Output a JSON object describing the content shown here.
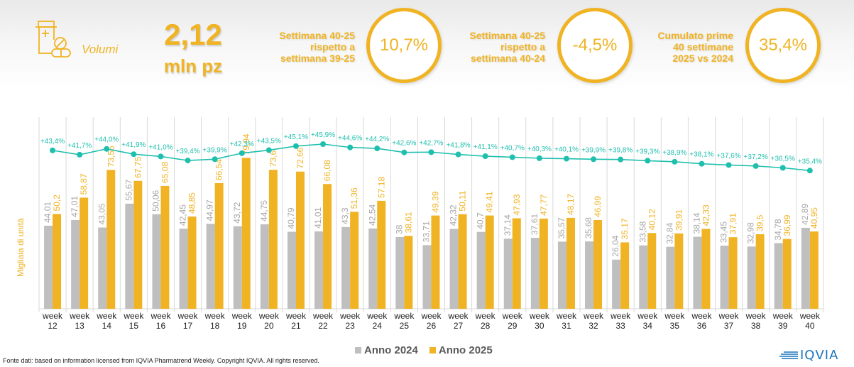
{
  "header": {
    "section_icon": "pill-bottle-icon",
    "section_label": "Volumi",
    "total_value": "2,12",
    "total_unit": "mln pz",
    "kpis": [
      {
        "label_lines": [
          "Settimana 40-25",
          "rispetto a",
          "settimana 39-25"
        ],
        "value": "10,7%"
      },
      {
        "label_lines": [
          "Settimana 40-25",
          "rispetto a",
          "settimana 40-24"
        ],
        "value": "-4,5%"
      },
      {
        "label_lines": [
          "Cumulato prime",
          "40 settimane",
          "2025 vs 2024"
        ],
        "value": "35,4%"
      }
    ]
  },
  "colors": {
    "accent": "#f0b323",
    "series_2024": "#bfbfbf",
    "series_2025": "#f0b323",
    "line": "#1fbfae",
    "grid": "#d9d9d9",
    "label_2024": "#a6a6a6",
    "label_2025": "#f0b323",
    "logo": "#1c75bc"
  },
  "chart_data": {
    "type": "bar",
    "title": "",
    "xlabel": "",
    "ylabel": "Migliaia di unità",
    "categories": [
      "week 12",
      "week 13",
      "week 14",
      "week 15",
      "week 16",
      "week 17",
      "week 18",
      "week 19",
      "week 20",
      "week 21",
      "week 22",
      "week 23",
      "week 24",
      "week 25",
      "week 26",
      "week 27",
      "week 28",
      "week 29",
      "week 30",
      "week 31",
      "week 32",
      "week 33",
      "week 34",
      "week 35",
      "week 36",
      "week 37",
      "week 38",
      "week 39",
      "week 40"
    ],
    "series": [
      {
        "name": "Anno 2024",
        "type": "bar",
        "values": [
          44.01,
          47.01,
          43.05,
          55.67,
          50.06,
          42.45,
          44.97,
          43.72,
          44.75,
          40.79,
          41.01,
          43.3,
          42.54,
          38,
          33.71,
          42.32,
          40.7,
          37.14,
          37.61,
          35.57,
          35.68,
          26.04,
          33.58,
          32.84,
          38.14,
          33.45,
          32.98,
          34.78,
          42.89
        ],
        "labels": [
          "44,01",
          "47,01",
          "43,05",
          "55,67",
          "50,06",
          "42,45",
          "44,97",
          "43,72",
          "44,75",
          "40,79",
          "41,01",
          "43,3",
          "42,54",
          "38",
          "33,71",
          "42,32",
          "40,7",
          "37,14",
          "37,61",
          "35,57",
          "35,68",
          "26,04",
          "33,58",
          "32,84",
          "38,14",
          "33,45",
          "32,98",
          "34,78",
          "42,89"
        ]
      },
      {
        "name": "Anno 2025",
        "type": "bar",
        "values": [
          50.2,
          58.87,
          73.55,
          67.75,
          65.08,
          48.85,
          66.54,
          79.94,
          73.6,
          72.66,
          66.08,
          51.36,
          57.18,
          38.61,
          49.39,
          50.11,
          49.41,
          47.93,
          47.77,
          48.17,
          46.99,
          35.17,
          40.12,
          39.91,
          42.33,
          37.91,
          39.5,
          36.99,
          40.95
        ],
        "labels": [
          "50,2",
          "58,87",
          "73,55",
          "67,75",
          "65,08",
          "48,85",
          "66,54",
          "79,94",
          "73,6",
          "72,66",
          "66,08",
          "51,36",
          "57,18",
          "38,61",
          "49,39",
          "50,11",
          "49,41",
          "47,93",
          "47,77",
          "48,17",
          "46,99",
          "35,17",
          "40,12",
          "39,91",
          "42,33",
          "37,91",
          "39,5",
          "36,99",
          "40,95"
        ]
      },
      {
        "name": "Cumulato 2025 vs 2024",
        "type": "line",
        "values": [
          43.4,
          41.7,
          44.0,
          41.9,
          41.0,
          39.4,
          39.9,
          42.3,
          43.5,
          45.1,
          45.9,
          44.6,
          44.2,
          42.6,
          42.7,
          41.8,
          41.1,
          40.7,
          40.3,
          40.1,
          39.9,
          39.8,
          39.3,
          38.9,
          38.1,
          37.6,
          37.2,
          36.5,
          35.4
        ],
        "labels": [
          "+43,4%",
          "+41,7%",
          "+44,0%",
          "+41,9%",
          "+41,0%",
          "+39,4%",
          "+39,9%",
          "+42,3%",
          "+43,5%",
          "+45,1%",
          "+45,9%",
          "+44,6%",
          "+44,2%",
          "+42,6%",
          "+42,7%",
          "+41,8%",
          "+41,1%",
          "+40,7%",
          "+40,3%",
          "+40,1%",
          "+39,9%",
          "+39,8%",
          "+39,3%",
          "+38,9%",
          "+38,1%",
          "+37,6%",
          "+37,2%",
          "+36,5%",
          "+35,4%"
        ]
      }
    ],
    "ylim": [
      0,
      100
    ],
    "grid": "vertical",
    "legend": "bottom"
  },
  "legend": {
    "items": [
      "Anno 2024",
      "Anno 2025"
    ]
  },
  "footer": {
    "source": "Fonte dati: based on information licensed from IQVIA Pharmatrend Weekly. Copyright IQVIA. All rights reserved."
  },
  "logo": {
    "text": "IQVIA"
  }
}
